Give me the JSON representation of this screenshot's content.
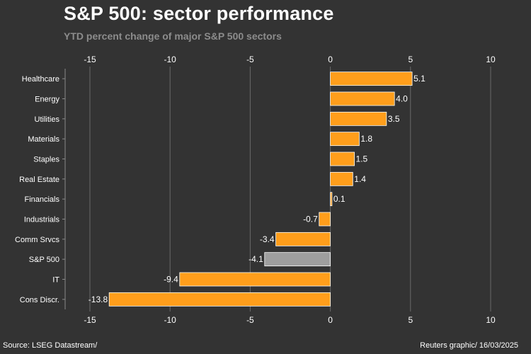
{
  "chart_data": {
    "type": "bar",
    "orientation": "horizontal",
    "title": "S&P 500: sector performance",
    "subtitle": "YTD percent change of major S&P 500 sectors",
    "categories": [
      "Healthcare",
      "Energy",
      "Utilities",
      "Materials",
      "Staples",
      "Real Estate",
      "Financials",
      "Industrials",
      "Comm Srvcs",
      "S&P 500",
      "IT",
      "Cons Discr."
    ],
    "values": [
      5.1,
      4.0,
      3.5,
      1.8,
      1.5,
      1.4,
      0.1,
      -0.7,
      -3.4,
      -4.1,
      -9.4,
      -13.8
    ],
    "value_labels": [
      "5.1",
      "4.0",
      "3.5",
      "1.8",
      "1.5",
      "1.4",
      "0.1",
      "-0.7",
      "-3.4",
      "-4.1",
      "-9.4",
      "-13.8"
    ],
    "highlight_category": "S&P 500",
    "xlim": [
      -15,
      10
    ],
    "xticks": [
      -15,
      -10,
      -5,
      0,
      5,
      10
    ],
    "xtick_labels": [
      "-15",
      "-10",
      "-5",
      "0",
      "5",
      "10"
    ],
    "grid": true,
    "colors": {
      "bar": "#ff9e1b",
      "highlight": "#9e9e9e",
      "grid": "#6a6a6a",
      "background": "#333333"
    }
  },
  "footer": {
    "source": "Source: LSEG Datastream/",
    "credit": "Reuters graphic/ 16/03/2025"
  }
}
